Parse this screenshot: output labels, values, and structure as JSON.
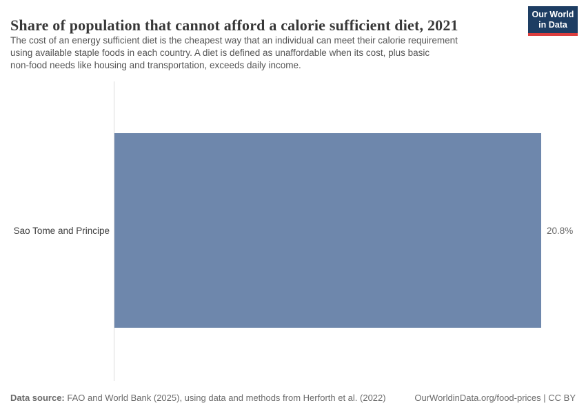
{
  "header": {
    "title": "Share of population that cannot afford a calorie sufficient diet, 2021",
    "subtitle_lines": [
      "The cost of an energy sufficient diet is the cheapest way that an individual can meet their calorie requirement",
      "using available staple foods in each country. A diet is defined as unaffordable when its cost, plus basic",
      "non-food needs like housing and transportation, exceeds daily income."
    ]
  },
  "logo": {
    "line1": "Our World",
    "line2": "in Data",
    "bg_color": "#1d3d63",
    "stripe_color": "#dc3e3e"
  },
  "chart_data": {
    "type": "bar",
    "orientation": "horizontal",
    "title": "Share of population that cannot afford a calorie sufficient diet, 2021",
    "categories": [
      "Sao Tome and Principe"
    ],
    "values": [
      20.8
    ],
    "value_labels": [
      "20.8%"
    ],
    "unit": "%",
    "xlim": [
      0,
      20.8
    ],
    "bar_color": "#6e87ac",
    "axis_line_color": "#dcdcdc",
    "grid": false,
    "legend": false
  },
  "footer": {
    "datasource_label": "Data source:",
    "datasource_text": "FAO and World Bank (2025), using data and methods from Herforth et al. (2022)",
    "link_text": "OurWorldinData.org/food-prices | CC BY"
  }
}
